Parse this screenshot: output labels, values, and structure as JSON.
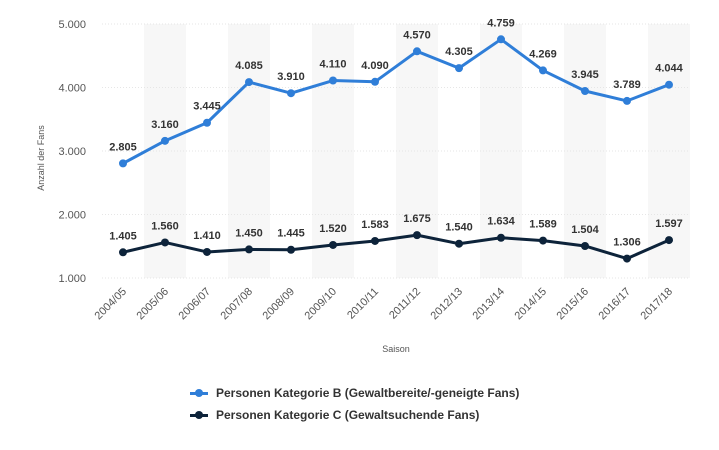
{
  "chart_data": {
    "type": "line",
    "categories": [
      "2004/05",
      "2005/06",
      "2006/07",
      "2007/08",
      "2008/09",
      "2009/10",
      "2010/11",
      "2011/12",
      "2012/13",
      "2013/14",
      "2014/15",
      "2015/16",
      "2016/17",
      "2017/18"
    ],
    "series": [
      {
        "name": "Personen Kategorie B (Gewaltbereite/-geneigte Fans)",
        "color": "#2f7ed8",
        "values": [
          2805,
          3160,
          3445,
          4085,
          3910,
          4110,
          4090,
          4570,
          4305,
          4759,
          4269,
          3945,
          3789,
          4044
        ],
        "labels": [
          "2.805",
          "3.160",
          "3.445",
          "4.085",
          "3.910",
          "4.110",
          "4.090",
          "4.570",
          "4.305",
          "4.759",
          "4.269",
          "3.945",
          "3.789",
          "4.044"
        ]
      },
      {
        "name": "Personen Kategorie C (Gewaltsuchende Fans)",
        "color": "#0d233a",
        "values": [
          1405,
          1560,
          1410,
          1450,
          1445,
          1520,
          1583,
          1675,
          1540,
          1634,
          1589,
          1504,
          1306,
          1597
        ],
        "labels": [
          "1.405",
          "1.560",
          "1.410",
          "1.450",
          "1.445",
          "1.520",
          "1.583",
          "1.675",
          "1.540",
          "1.634",
          "1.589",
          "1.504",
          "1.306",
          "1.597"
        ]
      }
    ],
    "y_ticks": [
      {
        "value": 1000,
        "label": "1.000"
      },
      {
        "value": 2000,
        "label": "2.000"
      },
      {
        "value": 3000,
        "label": "3.000"
      },
      {
        "value": 4000,
        "label": "4.000"
      },
      {
        "value": 5000,
        "label": "5.000"
      }
    ],
    "ylim": [
      1000,
      5000
    ],
    "xlabel": "Saison",
    "ylabel": "Anzahl der Fans",
    "grid": true,
    "legend_position": "bottom"
  }
}
